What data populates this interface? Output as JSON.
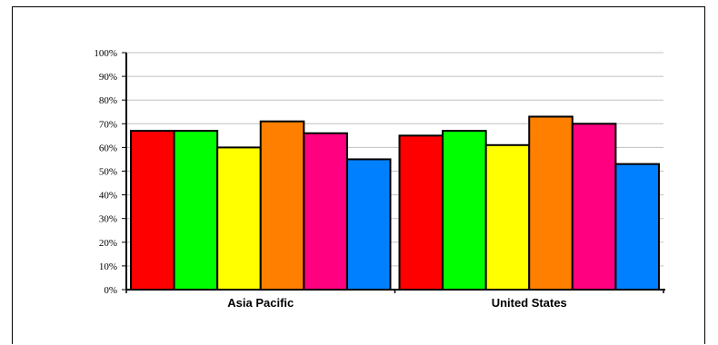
{
  "chart_data": {
    "type": "bar",
    "categories": [
      "Asia Pacific",
      "United States"
    ],
    "series": [
      {
        "color": "#ff0000",
        "values": [
          67,
          65
        ]
      },
      {
        "color": "#00ff00",
        "values": [
          67,
          67
        ]
      },
      {
        "color": "#ffff00",
        "values": [
          60,
          61
        ]
      },
      {
        "color": "#ff8000",
        "values": [
          71,
          73
        ]
      },
      {
        "color": "#ff0080",
        "values": [
          66,
          70
        ]
      },
      {
        "color": "#0080ff",
        "values": [
          55,
          53
        ]
      }
    ],
    "y_ticks": [
      "0%",
      "10%",
      "20%",
      "30%",
      "40%",
      "50%",
      "60%",
      "70%",
      "80%",
      "90%",
      "100%"
    ],
    "ylim": [
      0,
      100
    ],
    "grid": true,
    "legend": "none"
  }
}
